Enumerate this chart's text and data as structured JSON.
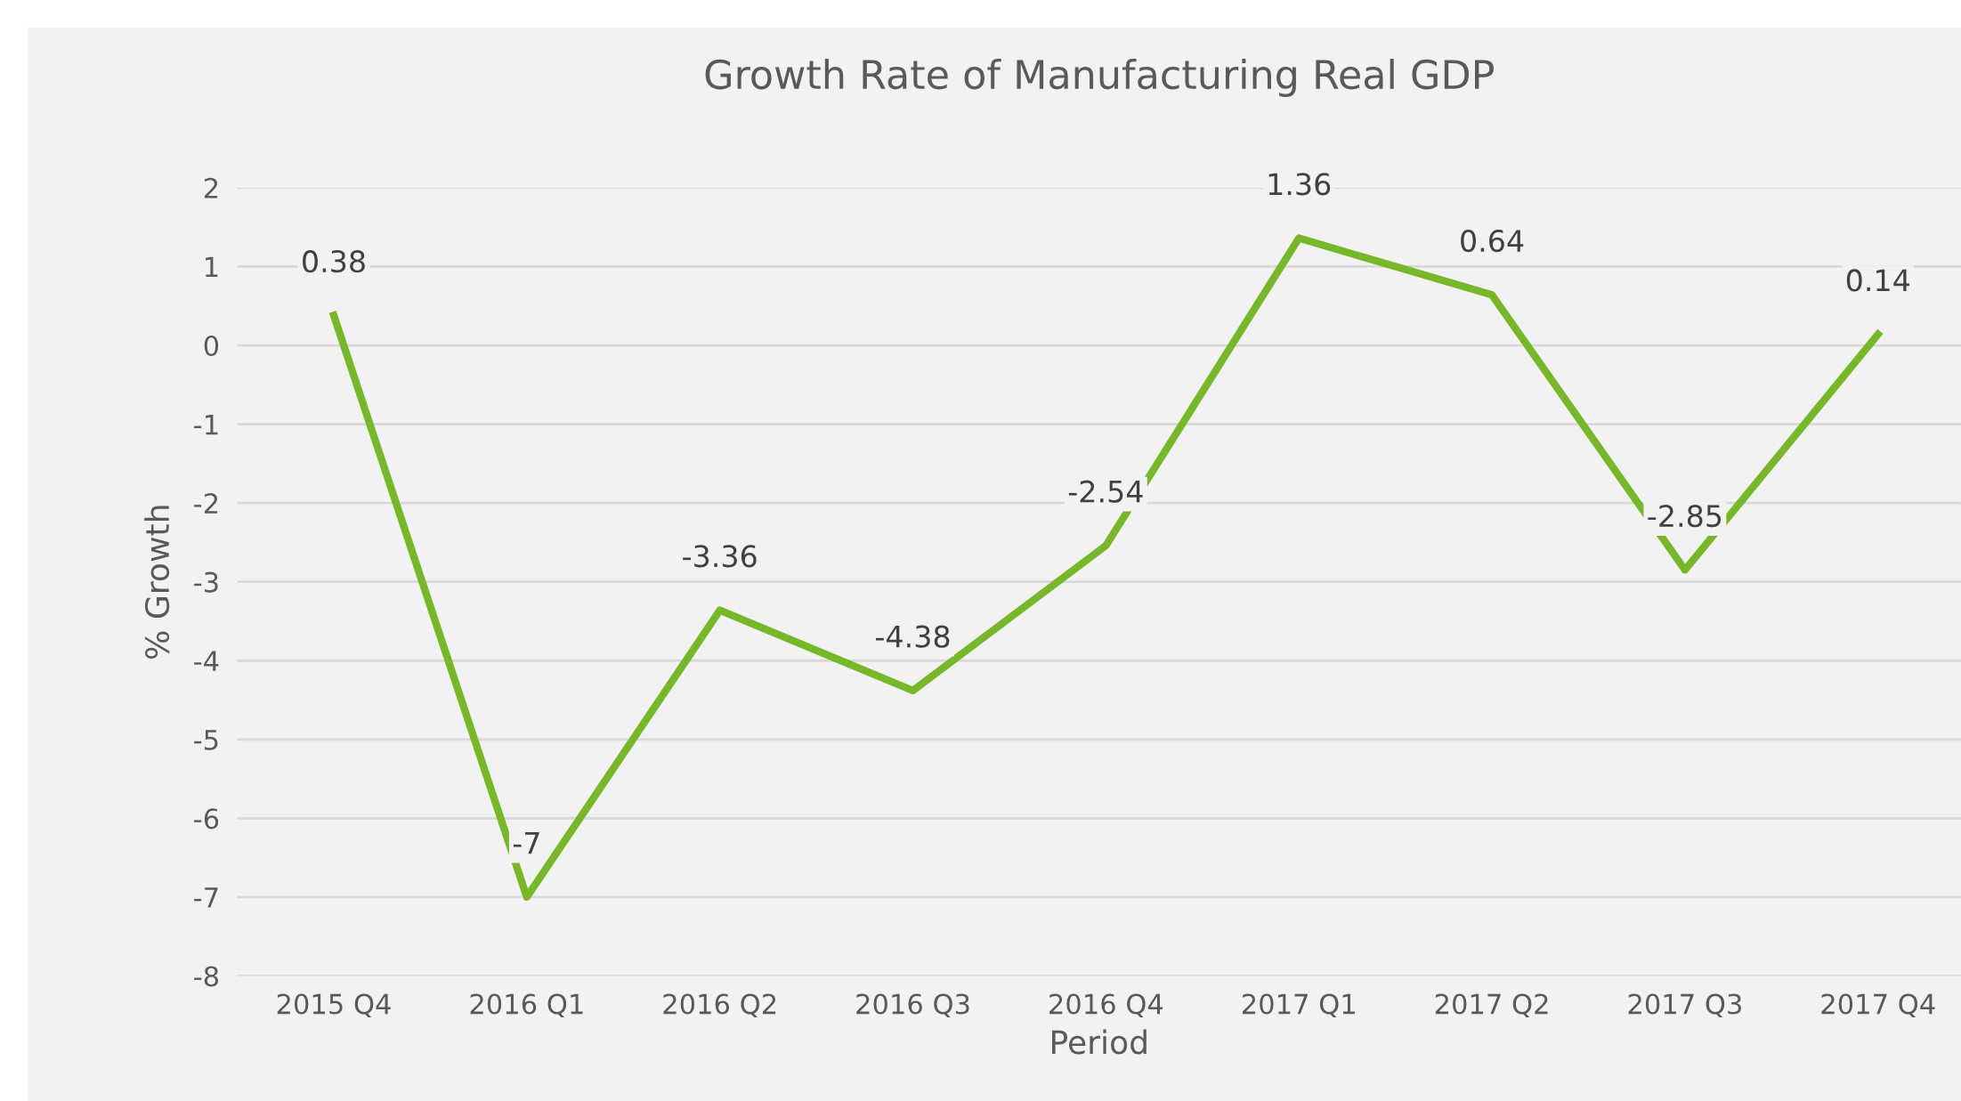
{
  "chart_data": {
    "type": "line",
    "title": "Growth Rate of Manufacturing Real GDP",
    "xlabel": "Period",
    "ylabel": "% Growth",
    "categories": [
      "2015 Q4",
      "2016 Q1",
      "2016 Q2",
      "2016 Q3",
      "2016 Q4",
      "2017 Q1",
      "2017 Q2",
      "2017 Q3",
      "2017 Q4"
    ],
    "series": [
      {
        "color": "#76b82a",
        "values": [
          0.38,
          -7,
          -3.36,
          -4.38,
          -2.54,
          1.36,
          0.64,
          -2.85,
          0.14
        ]
      }
    ],
    "ylim": [
      -8,
      2
    ],
    "yticks": [
      -8,
      -7,
      -6,
      -5,
      -4,
      -3,
      -2,
      -1,
      0,
      1,
      2
    ],
    "grid": "y",
    "marker": "none",
    "line_style": "solid",
    "data_labels": true
  }
}
